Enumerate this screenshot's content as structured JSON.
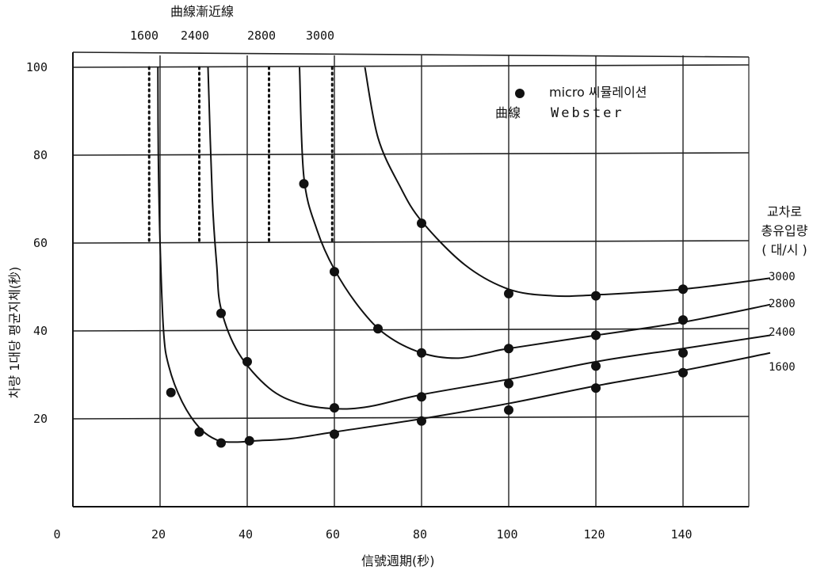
{
  "chart_data": {
    "type": "line",
    "asymptote_title": "曲線漸近線",
    "xlabel": "信號週期(秒)",
    "ylabel": "차량 1대당 평균지체(秒)",
    "legend_title_lines": [
      "교차로",
      "총유입량",
      "( 대/시 )"
    ],
    "legend": {
      "marker_label": "micro 씨뮬레이션",
      "curve_label": "曲線",
      "curve_name": "Webster"
    },
    "xlim": [
      0,
      160
    ],
    "ylim": [
      0,
      102
    ],
    "x_ticks": [
      0,
      20,
      40,
      60,
      80,
      100,
      120,
      140
    ],
    "y_ticks": [
      20,
      40,
      60,
      80,
      100
    ],
    "series": [
      {
        "name": "1600",
        "asymptote_x": 17.5,
        "curve": [
          [
            19.5,
            100
          ],
          [
            19.6,
            80
          ],
          [
            20,
            60
          ],
          [
            20.8,
            40
          ],
          [
            22,
            32
          ],
          [
            25,
            24
          ],
          [
            29,
            18
          ],
          [
            33,
            15.2
          ],
          [
            37,
            14.7
          ],
          [
            42,
            15
          ],
          [
            50,
            15.5
          ],
          [
            60,
            17
          ],
          [
            80,
            20
          ],
          [
            100,
            23.5
          ],
          [
            120,
            27.5
          ],
          [
            140,
            31
          ],
          [
            160,
            35
          ]
        ],
        "points": [
          [
            22.5,
            26
          ],
          [
            29,
            17
          ],
          [
            34,
            14.5
          ],
          [
            40.5,
            15
          ],
          [
            60,
            16.5
          ],
          [
            80,
            19.5
          ],
          [
            100,
            22
          ],
          [
            120,
            27
          ],
          [
            140,
            30.5
          ]
        ]
      },
      {
        "name": "2400",
        "asymptote_x": 29,
        "curve": [
          [
            31,
            100
          ],
          [
            32,
            70
          ],
          [
            33,
            55
          ],
          [
            34,
            45
          ],
          [
            38,
            35
          ],
          [
            45,
            27
          ],
          [
            52,
            23.5
          ],
          [
            60,
            22.3
          ],
          [
            68,
            22.8
          ],
          [
            80,
            25.5
          ],
          [
            100,
            29
          ],
          [
            120,
            33
          ],
          [
            140,
            36
          ],
          [
            160,
            39
          ]
        ],
        "points": [
          [
            34,
            44
          ],
          [
            40,
            33
          ],
          [
            60,
            22.5
          ],
          [
            80,
            25
          ],
          [
            100,
            28
          ],
          [
            120,
            32
          ],
          [
            140,
            35
          ]
        ]
      },
      {
        "name": "2800",
        "asymptote_x": 45,
        "curve": [
          [
            52,
            100
          ],
          [
            53,
            75
          ],
          [
            56,
            63
          ],
          [
            60,
            54
          ],
          [
            66,
            45
          ],
          [
            72,
            39
          ],
          [
            80,
            35
          ],
          [
            88,
            33.8
          ],
          [
            95,
            35
          ],
          [
            100,
            36
          ],
          [
            120,
            39
          ],
          [
            140,
            42
          ],
          [
            160,
            46
          ]
        ],
        "points": [
          [
            53,
            73.5
          ],
          [
            60,
            53.5
          ],
          [
            70,
            40.5
          ],
          [
            80,
            35
          ],
          [
            100,
            36
          ],
          [
            120,
            39
          ],
          [
            140,
            42.5
          ]
        ]
      },
      {
        "name": "3000",
        "asymptote_x": 59.5,
        "curve": [
          [
            67,
            100
          ],
          [
            70,
            84
          ],
          [
            75,
            73
          ],
          [
            80,
            65
          ],
          [
            90,
            55
          ],
          [
            100,
            49.5
          ],
          [
            110,
            48
          ],
          [
            120,
            48.2
          ],
          [
            140,
            49.5
          ],
          [
            160,
            52
          ]
        ],
        "points": [
          [
            80,
            64.5
          ],
          [
            100,
            48.5
          ],
          [
            120,
            48
          ],
          [
            140,
            49.5
          ]
        ]
      }
    ],
    "side_labels_order": [
      "3000",
      "2800",
      "2400",
      "1600"
    ]
  }
}
